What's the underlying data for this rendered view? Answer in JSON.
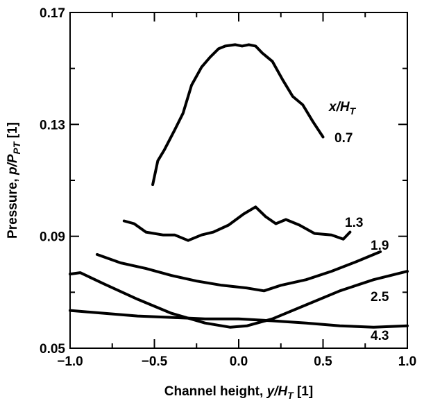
{
  "chart_data": {
    "type": "line",
    "xlabel_main": "Channel height,",
    "xlabel_var": "y/H",
    "xlabel_sub": "T",
    "xlabel_unit": "[1]",
    "ylabel_main": "Pressure,",
    "ylabel_var": "p/P",
    "ylabel_sub": "PT",
    "ylabel_unit": "[1]",
    "legend_title_var": "x/H",
    "legend_title_sub": "T",
    "xlim": [
      -1.0,
      1.0
    ],
    "ylim": [
      0.05,
      0.17
    ],
    "x_tick_labels": [
      "−1.0",
      "−0.5",
      "0.0",
      "0.5",
      "1.0"
    ],
    "x_ticks": [
      -1.0,
      -0.5,
      0.0,
      0.5,
      1.0
    ],
    "y_tick_labels": [
      "0.05",
      "0.09",
      "0.13",
      "0.17"
    ],
    "y_ticks": [
      0.05,
      0.09,
      0.13,
      0.17
    ],
    "grid": false,
    "series": [
      {
        "name": "0.7",
        "x": [
          -0.51,
          -0.48,
          -0.44,
          -0.38,
          -0.33,
          -0.28,
          -0.22,
          -0.17,
          -0.12,
          -0.08,
          -0.02,
          0.02,
          0.06,
          0.1,
          0.14,
          0.2,
          0.26,
          0.32,
          0.38,
          0.44,
          0.5
        ],
        "y": [
          0.1085,
          0.117,
          0.121,
          0.128,
          0.134,
          0.144,
          0.1505,
          0.154,
          0.157,
          0.158,
          0.1585,
          0.158,
          0.1585,
          0.158,
          0.1555,
          0.1525,
          0.146,
          0.14,
          0.137,
          0.131,
          0.1255
        ]
      },
      {
        "name": "1.3",
        "x": [
          -0.68,
          -0.62,
          -0.55,
          -0.45,
          -0.38,
          -0.3,
          -0.22,
          -0.15,
          -0.06,
          0.03,
          0.1,
          0.16,
          0.22,
          0.28,
          0.36,
          0.45,
          0.55,
          0.62,
          0.66
        ],
        "y": [
          0.0955,
          0.0945,
          0.0915,
          0.0905,
          0.0905,
          0.0885,
          0.0905,
          0.0915,
          0.094,
          0.098,
          0.1005,
          0.097,
          0.0945,
          0.096,
          0.094,
          0.091,
          0.0905,
          0.089,
          0.0915
        ]
      },
      {
        "name": "1.9",
        "x": [
          -0.84,
          -0.7,
          -0.55,
          -0.4,
          -0.25,
          -0.1,
          0.05,
          0.15,
          0.25,
          0.4,
          0.55,
          0.7,
          0.84
        ],
        "y": [
          0.0835,
          0.0805,
          0.0785,
          0.076,
          0.074,
          0.0725,
          0.0715,
          0.0705,
          0.0725,
          0.0745,
          0.0775,
          0.081,
          0.0845
        ]
      },
      {
        "name": "2.5",
        "x": [
          -1.0,
          -0.94,
          -0.8,
          -0.6,
          -0.4,
          -0.2,
          -0.05,
          0.05,
          0.2,
          0.4,
          0.6,
          0.8,
          1.0
        ],
        "y": [
          0.0765,
          0.077,
          0.073,
          0.0675,
          0.0625,
          0.059,
          0.0575,
          0.058,
          0.0605,
          0.0655,
          0.0705,
          0.0745,
          0.0775
        ]
      },
      {
        "name": "4.3",
        "x": [
          -1.0,
          -0.8,
          -0.6,
          -0.4,
          -0.2,
          0.0,
          0.2,
          0.4,
          0.6,
          0.8,
          1.0
        ],
        "y": [
          0.0635,
          0.0625,
          0.0615,
          0.061,
          0.0605,
          0.0605,
          0.0598,
          0.059,
          0.058,
          0.0575,
          0.058
        ]
      }
    ]
  }
}
